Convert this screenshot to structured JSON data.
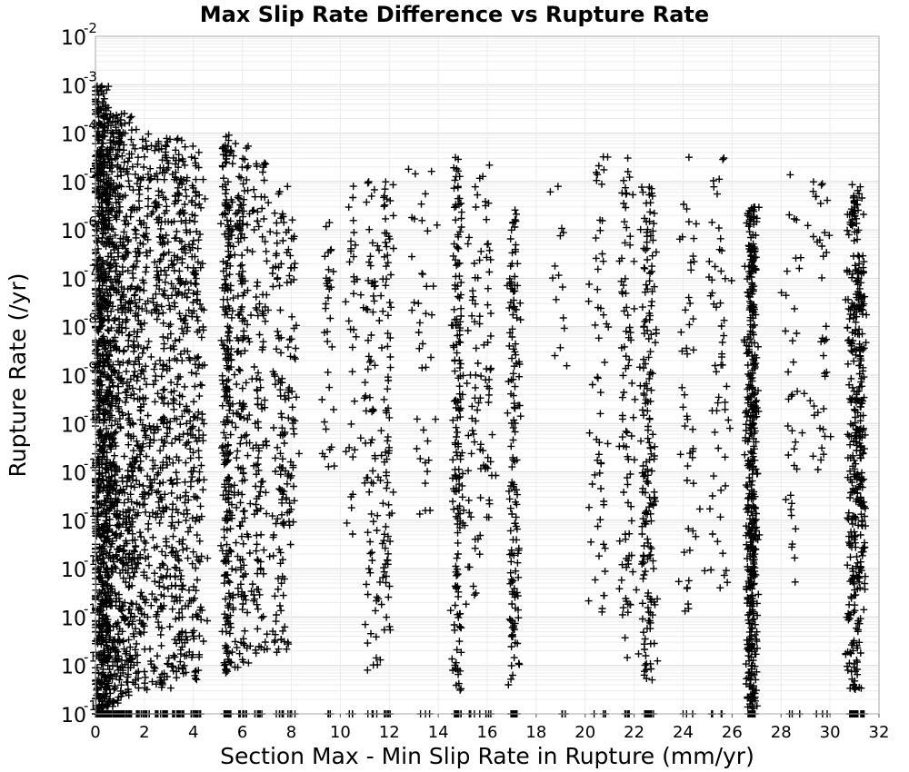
{
  "chart_data": {
    "type": "scatter",
    "title": "Max Slip Rate Difference vs Rupture Rate",
    "xlabel": "Section Max - Min Slip Rate in Rupture (mm/yr)",
    "ylabel": "Rupture Rate (/yr)",
    "xlim": [
      0,
      32
    ],
    "ylim": [
      1e-16,
      0.01
    ],
    "y_scale": "log",
    "grid": true,
    "marker": "+",
    "marker_color": "#000000",
    "x_ticks": [
      "0",
      "2",
      "4",
      "6",
      "8",
      "10",
      "12",
      "14",
      "16",
      "18",
      "20",
      "22",
      "24",
      "26",
      "28",
      "30",
      "32"
    ],
    "y_ticks": [
      {
        "base": "10",
        "exp": "-16"
      },
      {
        "base": "10",
        "exp": "-15"
      },
      {
        "base": "10",
        "exp": "-14"
      },
      {
        "base": "10",
        "exp": "-13"
      },
      {
        "base": "10",
        "exp": "-12"
      },
      {
        "base": "10",
        "exp": "-11"
      },
      {
        "base": "10",
        "exp": "-10"
      },
      {
        "base": "10",
        "exp": "-9"
      },
      {
        "base": "10",
        "exp": "-8"
      },
      {
        "base": "10",
        "exp": "-7"
      },
      {
        "base": "10",
        "exp": "-6"
      },
      {
        "base": "10",
        "exp": "-5"
      },
      {
        "base": "10",
        "exp": "-4"
      },
      {
        "base": "10",
        "exp": "-3"
      },
      {
        "base": "10",
        "exp": "-2"
      }
    ],
    "clusters": [
      {
        "x": 0.2,
        "spread": 0.25,
        "n": 700,
        "ymin": -15.9,
        "ymax": -3.0
      },
      {
        "x": 0.6,
        "spread": 0.3,
        "n": 500,
        "ymin": -15.8,
        "ymax": -3.5
      },
      {
        "x": 1.2,
        "spread": 0.35,
        "n": 380,
        "ymin": -15.7,
        "ymax": -3.6
      },
      {
        "x": 1.9,
        "spread": 0.3,
        "n": 260,
        "ymin": -15.5,
        "ymax": -4.0
      },
      {
        "x": 2.7,
        "spread": 0.25,
        "n": 240,
        "ymin": -15.5,
        "ymax": -4.1
      },
      {
        "x": 3.4,
        "spread": 0.25,
        "n": 240,
        "ymin": -15.3,
        "ymax": -4.0
      },
      {
        "x": 4.1,
        "spread": 0.25,
        "n": 200,
        "ymin": -15.3,
        "ymax": -4.2
      },
      {
        "x": 5.4,
        "spread": 0.15,
        "n": 280,
        "ymin": -15.2,
        "ymax": -4.0
      },
      {
        "x": 6.0,
        "spread": 0.2,
        "n": 170,
        "ymin": -15.2,
        "ymax": -4.2
      },
      {
        "x": 6.7,
        "spread": 0.2,
        "n": 130,
        "ymin": -14.8,
        "ymax": -4.5
      },
      {
        "x": 7.5,
        "spread": 0.2,
        "n": 110,
        "ymin": -14.8,
        "ymax": -5.0
      },
      {
        "x": 8.0,
        "spread": 0.15,
        "n": 60,
        "ymin": -12.5,
        "ymax": -5.5
      },
      {
        "x": 9.5,
        "spread": 0.15,
        "n": 35,
        "ymin": -11.0,
        "ymax": -5.5
      },
      {
        "x": 10.5,
        "spread": 0.2,
        "n": 35,
        "ymin": -12.5,
        "ymax": -5.0
      },
      {
        "x": 11.3,
        "spread": 0.2,
        "n": 80,
        "ymin": -15.2,
        "ymax": -5.0
      },
      {
        "x": 11.9,
        "spread": 0.15,
        "n": 90,
        "ymin": -14.5,
        "ymax": -5.0
      },
      {
        "x": 13.4,
        "spread": 0.3,
        "n": 40,
        "ymin": -12.0,
        "ymax": -4.5
      },
      {
        "x": 14.8,
        "spread": 0.15,
        "n": 180,
        "ymin": -15.6,
        "ymax": -4.5
      },
      {
        "x": 15.5,
        "spread": 0.25,
        "n": 60,
        "ymin": -14.0,
        "ymax": -4.5
      },
      {
        "x": 16.0,
        "spread": 0.15,
        "n": 40,
        "ymin": -12.0,
        "ymax": -4.5
      },
      {
        "x": 17.1,
        "spread": 0.15,
        "n": 150,
        "ymin": -15.4,
        "ymax": -5.5
      },
      {
        "x": 18.9,
        "spread": 0.3,
        "n": 15,
        "ymin": -9.0,
        "ymax": -4.2
      },
      {
        "x": 20.6,
        "spread": 0.25,
        "n": 60,
        "ymin": -14.0,
        "ymax": -4.3
      },
      {
        "x": 21.7,
        "spread": 0.2,
        "n": 90,
        "ymin": -15.0,
        "ymax": -4.3
      },
      {
        "x": 22.6,
        "spread": 0.2,
        "n": 190,
        "ymin": -15.3,
        "ymax": -5.0
      },
      {
        "x": 24.2,
        "spread": 0.25,
        "n": 50,
        "ymin": -14.0,
        "ymax": -4.5
      },
      {
        "x": 25.4,
        "spread": 0.3,
        "n": 60,
        "ymin": -13.5,
        "ymax": -4.5
      },
      {
        "x": 26.8,
        "spread": 0.15,
        "n": 460,
        "ymin": -15.9,
        "ymax": -5.5
      },
      {
        "x": 28.5,
        "spread": 0.3,
        "n": 40,
        "ymin": -13.5,
        "ymax": -4.5
      },
      {
        "x": 29.6,
        "spread": 0.3,
        "n": 40,
        "ymin": -11.0,
        "ymax": -5.0
      },
      {
        "x": 31.0,
        "spread": 0.2,
        "n": 290,
        "ymin": -15.5,
        "ymax": -5.0
      },
      {
        "x": 31.3,
        "spread": 0.1,
        "n": 120,
        "ymin": -13.5,
        "ymax": -6.5
      }
    ],
    "floor_points_y": 1e-16
  }
}
